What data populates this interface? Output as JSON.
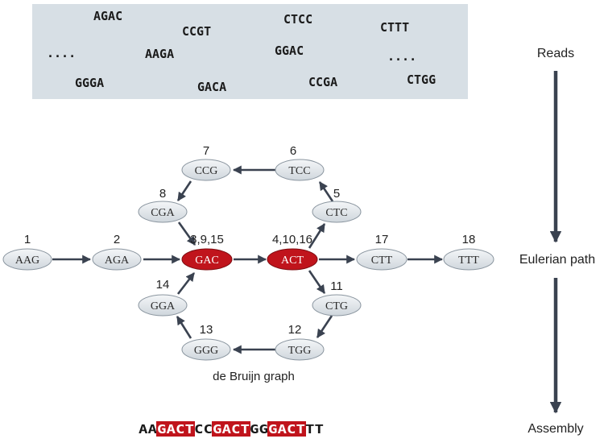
{
  "reads": {
    "items": [
      "AGAC",
      "CCGT",
      "CTCC",
      "CTTT",
      "....",
      "AAGA",
      "GGAC",
      "....",
      "GGGA",
      "GACA",
      "CCGA",
      "CTGG"
    ]
  },
  "labels": {
    "reads": "Reads",
    "eulerian_path": "Eulerian path",
    "assembly": "Assembly",
    "graph_caption": "de Bruijn graph"
  },
  "nodes": {
    "AAG": {
      "label": "AAG",
      "num": "1"
    },
    "AGA": {
      "label": "AGA",
      "num": "2"
    },
    "GAC": {
      "label": "GAC",
      "num": "3,9,15"
    },
    "ACT": {
      "label": "ACT",
      "num": "4,10,16"
    },
    "CTC": {
      "label": "CTC",
      "num": "5"
    },
    "TCC": {
      "label": "TCC",
      "num": "6"
    },
    "CCG": {
      "label": "CCG",
      "num": "7"
    },
    "CGA": {
      "label": "CGA",
      "num": "8"
    },
    "CTG": {
      "label": "CTG",
      "num": "11"
    },
    "TGG": {
      "label": "TGG",
      "num": "12"
    },
    "GGG": {
      "label": "GGG",
      "num": "13"
    },
    "GGA": {
      "label": "GGA",
      "num": "14"
    },
    "CTT": {
      "label": "CTT",
      "num": "17"
    },
    "TTT": {
      "label": "TTT",
      "num": "18"
    }
  },
  "assembly": {
    "segments": [
      {
        "text": "AA",
        "highlight": false
      },
      {
        "text": "GACT",
        "highlight": true
      },
      {
        "text": "CC",
        "highlight": false
      },
      {
        "text": "GACT",
        "highlight": true
      },
      {
        "text": "GG",
        "highlight": false
      },
      {
        "text": "GACT",
        "highlight": true
      },
      {
        "text": "TT",
        "highlight": false
      }
    ]
  },
  "colors": {
    "highlight": "#c0141c",
    "node_fill": "#e4e8ec",
    "reads_panel": "#d7dfe5",
    "arrow": "#3a4250"
  }
}
